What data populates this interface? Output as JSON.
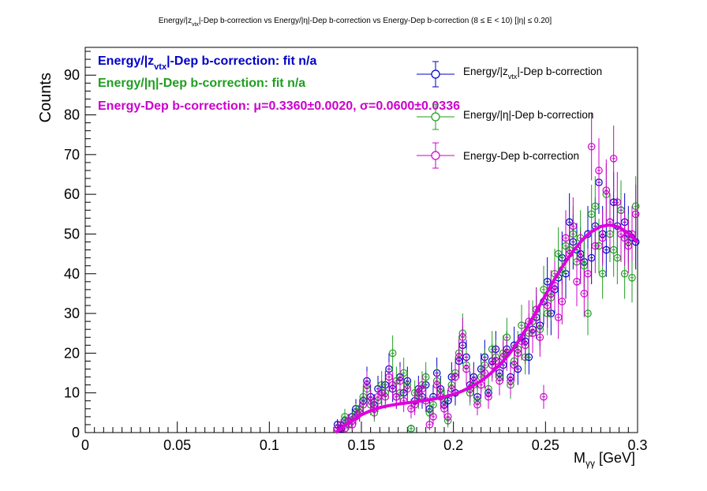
{
  "title": {
    "p1": "Energy/|z",
    "sub1": "vtx",
    "p2": "|-Dep b-correction vs Energy/|η|-Dep b-correction vs Energy-Dep b-correction   (8 ≤ E < 10)   [|η| ≤ 0.20]"
  },
  "axes": {
    "ylabel": "Counts",
    "xlabel_main": "M",
    "xlabel_sub": "γγ",
    "xlabel_unit": " [GeV]"
  },
  "annotations": {
    "a1_p1": "Energy/|z",
    "a1_sub": "vtx",
    "a1_p2": "|-Dep b-correction: fit n/a",
    "a2": "Energy/|η|-Dep b-correction: fit n/a",
    "a3": "Energy-Dep b-correction: μ=0.3360±0.0020, σ=0.0600±0.0336"
  },
  "legend": {
    "l1_p1": "Energy/|z",
    "l1_sub": "vtx",
    "l1_p2": "|-Dep b-correction",
    "l2": "Energy/|η|-Dep b-correction",
    "l3": "Energy-Dep b-correction"
  },
  "colors": {
    "blue": "#0000c8",
    "green": "#1f9e1f",
    "magenta": "#cc00cc",
    "fit": "#dd00dd",
    "axis": "#000000"
  },
  "chart_data": {
    "type": "scatter",
    "xlim": [
      0,
      0.3
    ],
    "ylim": [
      0,
      97
    ],
    "x_ticks": [
      "0",
      "0.05",
      "0.1",
      "0.15",
      "0.2",
      "0.25",
      "0.3"
    ],
    "y_ticks": [
      "0",
      "10",
      "20",
      "30",
      "40",
      "50",
      "60",
      "70",
      "80",
      "90"
    ],
    "x": [
      0.137,
      0.139,
      0.141,
      0.143,
      0.145,
      0.147,
      0.149,
      0.151,
      0.153,
      0.155,
      0.157,
      0.159,
      0.161,
      0.163,
      0.165,
      0.167,
      0.169,
      0.171,
      0.173,
      0.175,
      0.177,
      0.179,
      0.181,
      0.183,
      0.185,
      0.187,
      0.189,
      0.191,
      0.193,
      0.195,
      0.197,
      0.199,
      0.201,
      0.203,
      0.205,
      0.207,
      0.209,
      0.211,
      0.213,
      0.215,
      0.217,
      0.219,
      0.221,
      0.223,
      0.225,
      0.227,
      0.229,
      0.231,
      0.233,
      0.235,
      0.237,
      0.239,
      0.241,
      0.243,
      0.245,
      0.247,
      0.249,
      0.251,
      0.253,
      0.255,
      0.257,
      0.259,
      0.261,
      0.263,
      0.265,
      0.267,
      0.269,
      0.271,
      0.273,
      0.275,
      0.277,
      0.279,
      0.281,
      0.283,
      0.285,
      0.287,
      0.289,
      0.291,
      0.293,
      0.295,
      0.297,
      0.299
    ],
    "series": [
      {
        "name": "Energy/|zvtx|-Dep b-correction",
        "color": "#0000c8",
        "values": [
          2,
          1,
          3,
          2,
          4,
          6,
          5,
          8,
          13,
          9,
          7,
          11,
          10,
          12,
          16,
          11,
          9,
          14,
          10,
          13,
          1,
          8,
          11,
          9,
          12,
          6,
          9,
          15,
          11,
          7,
          8,
          14,
          10,
          18,
          22,
          19,
          12,
          14,
          9,
          16,
          19,
          10,
          18,
          21,
          15,
          17,
          21,
          14,
          22,
          16,
          24,
          23,
          19,
          26,
          29,
          27,
          33,
          38,
          30,
          36,
          39,
          44,
          40,
          53,
          48,
          46,
          45,
          43,
          50,
          44,
          52,
          63,
          50,
          46,
          53,
          58,
          52,
          56,
          53,
          50,
          49,
          48
        ]
      },
      {
        "name": "Energy/|η|-Dep b-correction",
        "color": "#1f9e1f",
        "values": [
          1,
          2,
          4,
          2,
          3,
          5,
          6,
          9,
          11,
          7,
          5,
          8,
          12,
          10,
          14,
          20,
          13,
          10,
          15,
          12,
          1,
          10,
          9,
          12,
          14,
          5,
          7,
          13,
          10,
          8,
          3,
          12,
          15,
          20,
          25,
          17,
          10,
          12,
          8,
          14,
          17,
          11,
          21,
          19,
          14,
          20,
          24,
          12,
          18,
          21,
          27,
          19,
          25,
          28,
          31,
          26,
          36,
          30,
          34,
          40,
          45,
          41,
          47,
          46,
          50,
          43,
          49,
          42,
          30,
          55,
          57,
          47,
          40,
          60,
          50,
          46,
          44,
          56,
          40,
          48,
          39,
          57
        ]
      },
      {
        "name": "Energy-Dep b-correction",
        "color": "#cc00cc",
        "values": [
          1,
          2,
          1,
          3,
          2,
          4,
          5,
          7,
          12,
          8,
          6,
          9,
          10,
          9,
          14,
          12,
          9,
          13,
          8,
          11,
          6,
          7,
          10,
          11,
          8,
          2,
          4,
          12,
          9,
          6,
          4,
          11,
          14,
          19,
          24,
          16,
          11,
          13,
          7,
          12,
          15,
          9,
          17,
          18,
          13,
          19,
          20,
          13,
          17,
          20,
          23,
          22,
          28,
          25,
          31,
          24,
          9,
          32,
          35,
          37,
          29,
          33,
          49,
          45,
          52,
          38,
          44,
          35,
          40,
          72,
          47,
          66,
          49,
          61,
          53,
          69,
          58,
          50,
          49,
          47,
          50,
          55
        ]
      }
    ],
    "fit": {
      "name": "Energy-Dep b-correction fit",
      "color": "#dd00dd",
      "x": [
        0.136,
        0.14,
        0.145,
        0.15,
        0.155,
        0.16,
        0.165,
        0.17,
        0.175,
        0.18,
        0.185,
        0.19,
        0.195,
        0.2,
        0.205,
        0.21,
        0.215,
        0.22,
        0.225,
        0.23,
        0.235,
        0.24,
        0.245,
        0.25,
        0.255,
        0.26,
        0.265,
        0.27,
        0.275,
        0.28,
        0.285,
        0.29,
        0.295,
        0.3
      ],
      "y": [
        0,
        1.5,
        3,
        4.5,
        5.5,
        6.3,
        6.8,
        7.2,
        7.5,
        7.8,
        8.1,
        8.5,
        9.0,
        9.6,
        10.5,
        11.6,
        13.0,
        14.8,
        17.0,
        19.6,
        22.8,
        26.5,
        30.5,
        34.6,
        38.7,
        42.4,
        45.7,
        48.5,
        50.6,
        51.9,
        52.3,
        51.7,
        50.2,
        48.0
      ]
    }
  }
}
